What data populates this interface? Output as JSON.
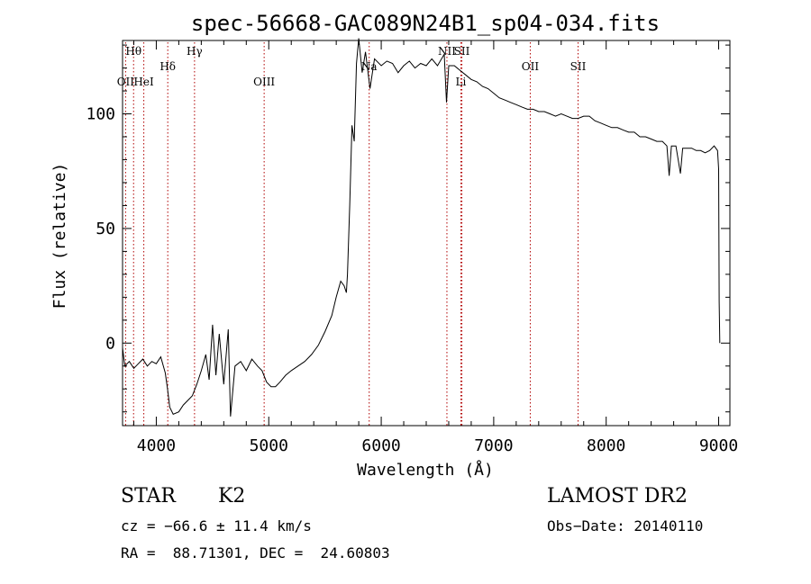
{
  "chart_data": {
    "type": "line",
    "title": "spec-56668-GAC089N24B1_sp04-034.fits",
    "xlabel": "Wavelength (Å)",
    "ylabel": "Flux (relative)",
    "xlim": [
      3700,
      9100
    ],
    "ylim": [
      -36,
      132
    ],
    "x_ticks": [
      4000,
      5000,
      6000,
      7000,
      8000,
      9000
    ],
    "y_ticks": [
      0,
      50,
      100
    ],
    "series": [
      {
        "points": [
          [
            3700,
            -2
          ],
          [
            3720,
            -10
          ],
          [
            3760,
            -8
          ],
          [
            3800,
            -11
          ],
          [
            3840,
            -9
          ],
          [
            3880,
            -7
          ],
          [
            3920,
            -10
          ],
          [
            3960,
            -8
          ],
          [
            4000,
            -9
          ],
          [
            4040,
            -6
          ],
          [
            4080,
            -13
          ],
          [
            4100,
            -20
          ],
          [
            4120,
            -28
          ],
          [
            4150,
            -31
          ],
          [
            4200,
            -30
          ],
          [
            4240,
            -27
          ],
          [
            4280,
            -25
          ],
          [
            4320,
            -23
          ],
          [
            4360,
            -18
          ],
          [
            4400,
            -12
          ],
          [
            4440,
            -5
          ],
          [
            4470,
            -16
          ],
          [
            4500,
            8
          ],
          [
            4530,
            -14
          ],
          [
            4560,
            4
          ],
          [
            4600,
            -18
          ],
          [
            4640,
            6
          ],
          [
            4660,
            -32
          ],
          [
            4700,
            -10
          ],
          [
            4750,
            -8
          ],
          [
            4800,
            -12
          ],
          [
            4850,
            -7
          ],
          [
            4900,
            -10
          ],
          [
            4940,
            -12
          ],
          [
            4980,
            -17
          ],
          [
            5020,
            -19
          ],
          [
            5060,
            -19
          ],
          [
            5100,
            -17
          ],
          [
            5150,
            -14
          ],
          [
            5200,
            -12
          ],
          [
            5260,
            -10
          ],
          [
            5320,
            -8
          ],
          [
            5380,
            -5
          ],
          [
            5440,
            -1
          ],
          [
            5500,
            5
          ],
          [
            5560,
            12
          ],
          [
            5600,
            20
          ],
          [
            5640,
            27
          ],
          [
            5670,
            25
          ],
          [
            5690,
            22
          ],
          [
            5700,
            30
          ],
          [
            5720,
            60
          ],
          [
            5740,
            95
          ],
          [
            5760,
            88
          ],
          [
            5780,
            122
          ],
          [
            5800,
            133
          ],
          [
            5830,
            118
          ],
          [
            5860,
            127
          ],
          [
            5900,
            111
          ],
          [
            5940,
            124
          ],
          [
            6000,
            121
          ],
          [
            6050,
            123
          ],
          [
            6100,
            122
          ],
          [
            6150,
            118
          ],
          [
            6200,
            121
          ],
          [
            6250,
            123
          ],
          [
            6300,
            120
          ],
          [
            6350,
            122
          ],
          [
            6400,
            121
          ],
          [
            6450,
            124
          ],
          [
            6500,
            121
          ],
          [
            6560,
            126
          ],
          [
            6580,
            105
          ],
          [
            6600,
            121
          ],
          [
            6650,
            121
          ],
          [
            6700,
            119
          ],
          [
            6750,
            117
          ],
          [
            6800,
            115
          ],
          [
            6850,
            114
          ],
          [
            6900,
            112
          ],
          [
            6950,
            111
          ],
          [
            7000,
            109
          ],
          [
            7050,
            107
          ],
          [
            7100,
            106
          ],
          [
            7150,
            105
          ],
          [
            7200,
            104
          ],
          [
            7250,
            103
          ],
          [
            7300,
            102
          ],
          [
            7350,
            102
          ],
          [
            7400,
            101
          ],
          [
            7450,
            101
          ],
          [
            7500,
            100
          ],
          [
            7550,
            99
          ],
          [
            7600,
            100
          ],
          [
            7650,
            99
          ],
          [
            7700,
            98
          ],
          [
            7750,
            98
          ],
          [
            7800,
            99
          ],
          [
            7850,
            99
          ],
          [
            7900,
            97
          ],
          [
            7950,
            96
          ],
          [
            8000,
            95
          ],
          [
            8050,
            94
          ],
          [
            8100,
            94
          ],
          [
            8150,
            93
          ],
          [
            8200,
            92
          ],
          [
            8250,
            92
          ],
          [
            8300,
            90
          ],
          [
            8350,
            90
          ],
          [
            8400,
            89
          ],
          [
            8450,
            88
          ],
          [
            8500,
            88
          ],
          [
            8540,
            86
          ],
          [
            8560,
            73
          ],
          [
            8580,
            86
          ],
          [
            8620,
            86
          ],
          [
            8660,
            74
          ],
          [
            8680,
            85
          ],
          [
            8720,
            85
          ],
          [
            8760,
            85
          ],
          [
            8800,
            84
          ],
          [
            8840,
            84
          ],
          [
            8880,
            83
          ],
          [
            8920,
            84
          ],
          [
            8960,
            86
          ],
          [
            8990,
            84
          ],
          [
            9000,
            76
          ],
          [
            9005,
            18
          ],
          [
            9010,
            0
          ]
        ]
      }
    ],
    "lines": [
      {
        "label": "Hθ",
        "x": 3798,
        "row": 0
      },
      {
        "label": "OII",
        "x": 3727,
        "row": 2
      },
      {
        "label": "HeI",
        "x": 3889,
        "row": 2
      },
      {
        "label": "Hδ",
        "x": 4102,
        "row": 1
      },
      {
        "label": "Hγ",
        "x": 4340,
        "row": 0
      },
      {
        "label": "OIII",
        "x": 4959,
        "row": 2
      },
      {
        "label": "Na",
        "x": 5893,
        "row": 1
      },
      {
        "label": "NII",
        "x": 6584,
        "row": 0
      },
      {
        "label": "SII",
        "x": 6717,
        "row": 0
      },
      {
        "label": "Li",
        "x": 6708,
        "row": 2
      },
      {
        "label": "OII",
        "x": 7325,
        "row": 1
      },
      {
        "label": "SII",
        "x": 7750,
        "row": 1
      }
    ],
    "grid": false,
    "legend": "none"
  },
  "info": {
    "class": "STAR",
    "subclass": "K2",
    "survey": "LAMOST DR2",
    "cz": "cz = −66.6 ± 11.4 km/s",
    "obs_date": "Obs−Date: 20140110",
    "coords": "RA =  88.71301, DEC =  24.60803"
  }
}
